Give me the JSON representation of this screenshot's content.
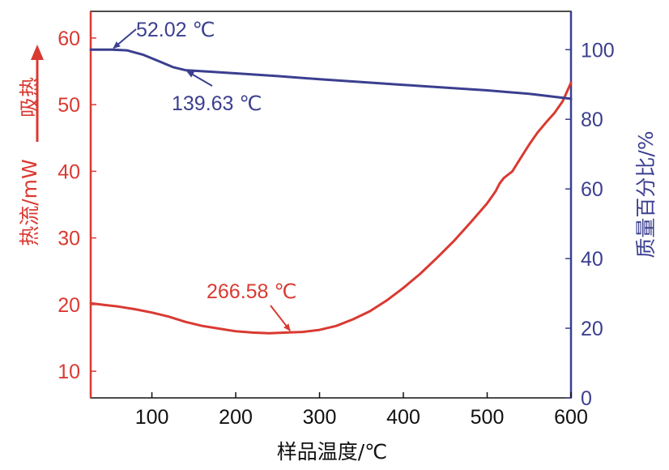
{
  "chart_data": {
    "type": "line",
    "xlabel": "样品温度/℃",
    "x_ticks": [
      "100",
      "200",
      "300",
      "400",
      "500",
      "600"
    ],
    "xlim": [
      27,
      600
    ],
    "ylabel_left": "热流/mW",
    "ylim_left": [
      6,
      64
    ],
    "y_ticks_left": [
      "10",
      "20",
      "30",
      "40",
      "50",
      "60"
    ],
    "ylabel_right": "质量百分比/%",
    "ylim_right": [
      0,
      111
    ],
    "y_ticks_right": [
      "0",
      "20",
      "40",
      "60",
      "80",
      "100"
    ],
    "endothermic_label": "吸热",
    "colors": {
      "heat_flow": "#d93a32",
      "mass": "#3b3f8f"
    },
    "series": [
      {
        "name": "热流/mW",
        "axis": "left",
        "color": "#d93a32",
        "x": [
          27,
          40,
          60,
          80,
          100,
          120,
          140,
          160,
          180,
          200,
          220,
          240,
          260,
          280,
          300,
          320,
          340,
          360,
          380,
          400,
          420,
          440,
          460,
          480,
          500,
          510,
          515,
          520,
          525,
          530,
          540,
          550,
          560,
          570,
          580,
          590,
          600
        ],
        "values": [
          20.2,
          20.0,
          19.7,
          19.3,
          18.8,
          18.2,
          17.4,
          16.8,
          16.4,
          16.0,
          15.8,
          15.7,
          15.8,
          15.9,
          16.2,
          16.8,
          17.8,
          19.0,
          20.6,
          22.5,
          24.6,
          27.0,
          29.5,
          32.3,
          35.2,
          37.0,
          38.2,
          39.0,
          39.5,
          40.0,
          42.0,
          44.0,
          45.8,
          47.3,
          48.7,
          50.5,
          53.3
        ]
      },
      {
        "name": "质量百分比/%",
        "axis": "right",
        "color": "#3b3f8f",
        "x": [
          27,
          40,
          52,
          70,
          90,
          110,
          125,
          140,
          160,
          200,
          250,
          300,
          350,
          400,
          450,
          500,
          550,
          600
        ],
        "values": [
          100,
          100,
          100,
          99.8,
          98.5,
          96.5,
          95,
          94.1,
          93.8,
          93.2,
          92.4,
          91.5,
          90.7,
          89.9,
          89.1,
          88.3,
          87.3,
          85.9
        ]
      }
    ],
    "annotations": [
      {
        "text": "52.02 ℃",
        "series": "质量百分比/%",
        "x": 52.02,
        "y": 100
      },
      {
        "text": "139.63 ℃",
        "series": "质量百分比/%",
        "x": 139.63,
        "y": 94.1
      },
      {
        "text": "266.58 ℃",
        "series": "热流/mW",
        "x": 266.58,
        "y": 15.8
      }
    ]
  }
}
